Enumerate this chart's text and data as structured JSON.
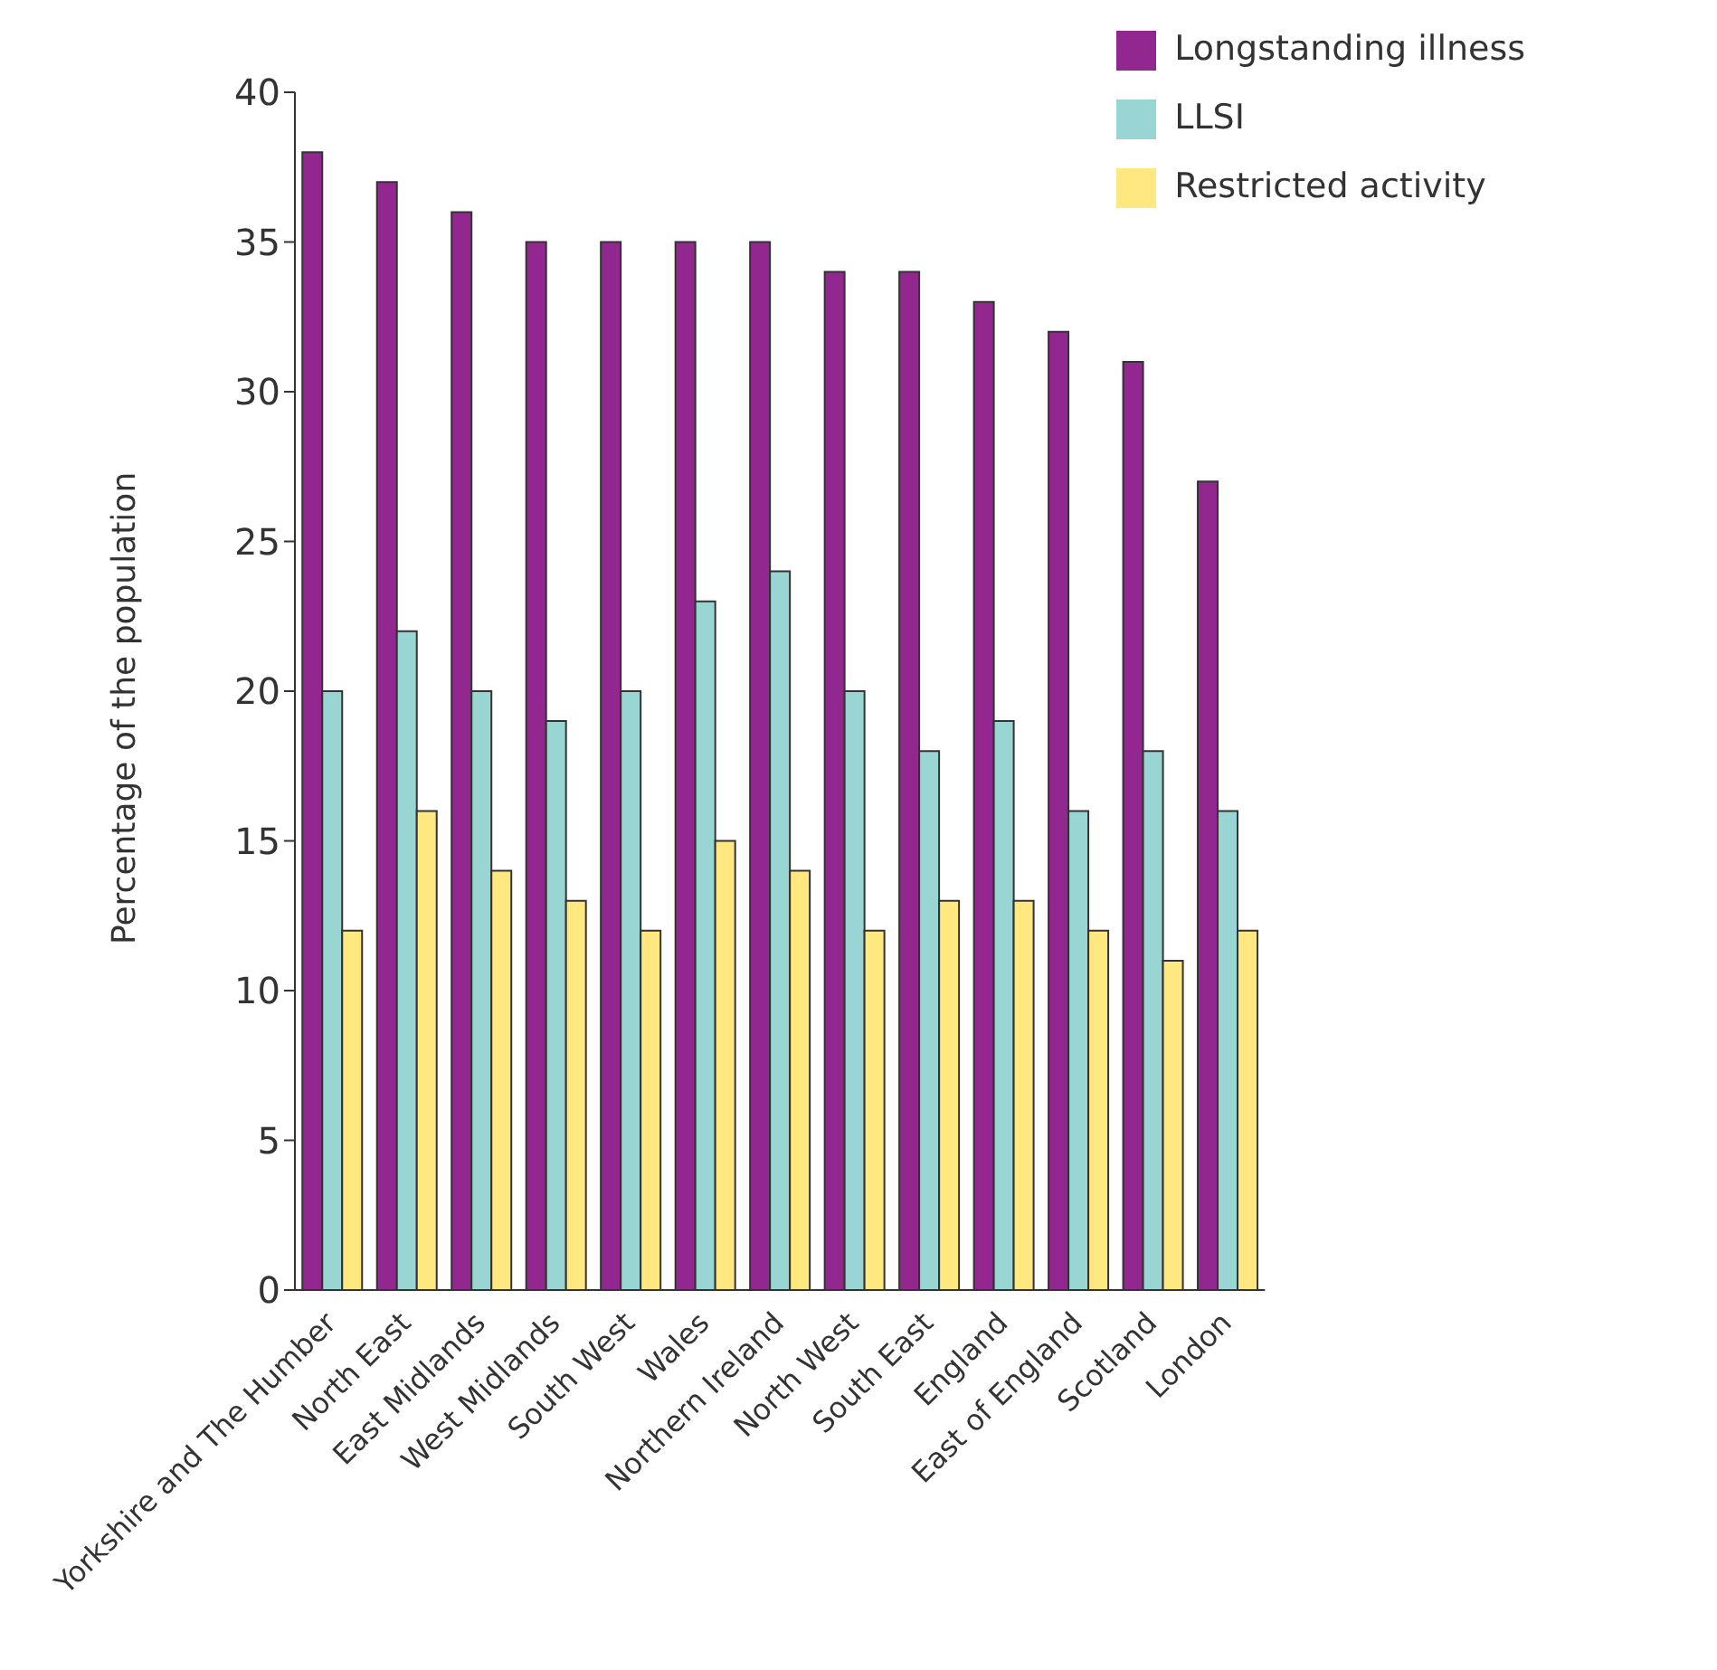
{
  "chart_data": {
    "type": "bar",
    "ylabel": "Percentage of the population",
    "categories": [
      "Yorkshire and The Humber",
      "North East",
      "East Midlands",
      "West Midlands",
      "South West",
      "Wales",
      "Northern Ireland",
      "North West",
      "South East",
      "England",
      "East of England",
      "Scotland",
      "London"
    ],
    "series": [
      {
        "name": "Longstanding illness",
        "color": "#92278f",
        "values": [
          38,
          37,
          36,
          35,
          35,
          35,
          35,
          34,
          34,
          33,
          32,
          31,
          27
        ]
      },
      {
        "name": "LLSI",
        "color": "#99d5d3",
        "values": [
          20,
          22,
          20,
          19,
          20,
          23,
          24,
          20,
          18,
          19,
          16,
          18,
          16
        ]
      },
      {
        "name": "Restricted activity",
        "color": "#ffe880",
        "values": [
          12,
          16,
          14,
          13,
          12,
          15,
          14,
          12,
          13,
          13,
          12,
          11,
          12
        ]
      }
    ],
    "ylim": [
      0,
      40
    ],
    "yticks": [
      0,
      5,
      10,
      15,
      20,
      25,
      30,
      35,
      40
    ],
    "grid": false,
    "legend": "top right"
  }
}
